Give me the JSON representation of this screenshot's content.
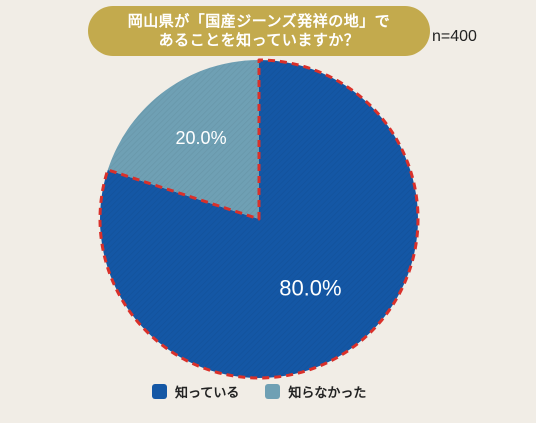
{
  "title": {
    "line1": "岡山県が「国産ジーンズ発祥の地」で",
    "line2": "あることを知っていますか？"
  },
  "sample": "n=400",
  "colors": {
    "known": "#1457a5",
    "unknown": "#6fa0b4",
    "outline": "#d9302a",
    "title_bg": "#c3aa4d"
  },
  "chart_data": {
    "type": "pie",
    "categories": [
      "知っている",
      "知らなかった"
    ],
    "values": [
      80.0,
      20.0
    ],
    "labels": [
      "80.0%",
      "20.0%"
    ],
    "legend": "bottom"
  }
}
